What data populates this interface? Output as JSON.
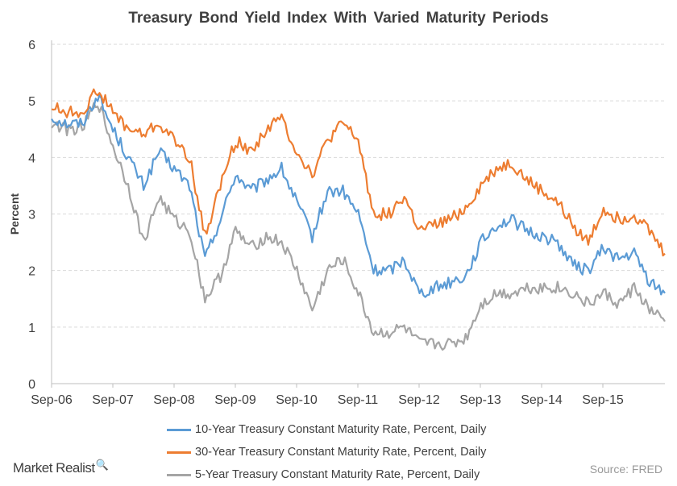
{
  "chart_data": {
    "type": "line",
    "title": "Treasury Bond Yield Index With Varied Maturity Periods",
    "ylabel": "Percent",
    "xlabel": "",
    "ylim": [
      0,
      6
    ],
    "yticks": [
      "0",
      "1",
      "2",
      "3",
      "4",
      "5",
      "6"
    ],
    "x_tick_labels": [
      "Sep-06",
      "Sep-07",
      "Sep-08",
      "Sep-09",
      "Sep-10",
      "Sep-11",
      "Sep-12",
      "Sep-13",
      "Sep-14",
      "Sep-15"
    ],
    "grid": true,
    "legend_position": "bottom",
    "x": [
      "Sep-06",
      "Dec-06",
      "Mar-07",
      "Jun-07",
      "Sep-07",
      "Dec-07",
      "Mar-08",
      "Jun-08",
      "Sep-08",
      "Nov-08",
      "Dec-08",
      "Mar-09",
      "Jun-09",
      "Sep-09",
      "Dec-09",
      "Mar-10",
      "Jun-10",
      "Sep-10",
      "Dec-10",
      "Mar-11",
      "Jun-11",
      "Sep-11",
      "Dec-11",
      "Mar-12",
      "Jun-12",
      "Sep-12",
      "Dec-12",
      "Mar-13",
      "Jun-13",
      "Sep-13",
      "Dec-13",
      "Mar-14",
      "Jun-14",
      "Sep-14",
      "Dec-14",
      "Mar-15",
      "Jun-15",
      "Sep-15",
      "Dec-15",
      "Mar-16",
      "Jun-16"
    ],
    "series": [
      {
        "name": "10-Year Treasury Constant Maturity Rate, Percent, Daily",
        "color": "#5b9bd5",
        "values": [
          4.7,
          4.6,
          4.6,
          5.1,
          4.5,
          4.0,
          3.5,
          4.1,
          3.8,
          3.5,
          2.2,
          2.9,
          3.7,
          3.4,
          3.6,
          3.8,
          3.2,
          2.6,
          3.4,
          3.4,
          3.0,
          2.0,
          2.0,
          2.2,
          1.6,
          1.7,
          1.8,
          1.9,
          2.5,
          2.8,
          2.9,
          2.7,
          2.6,
          2.5,
          2.1,
          2.0,
          2.4,
          2.2,
          2.3,
          1.8,
          1.6
        ]
      },
      {
        "name": "30-Year Treasury Constant Maturity Rate, Percent, Daily",
        "color": "#ed7d31",
        "values": [
          4.9,
          4.8,
          4.8,
          5.2,
          4.8,
          4.5,
          4.4,
          4.6,
          4.3,
          4.0,
          2.6,
          3.5,
          4.3,
          4.1,
          4.5,
          4.7,
          4.1,
          3.7,
          4.3,
          4.6,
          4.3,
          3.0,
          3.0,
          3.3,
          2.7,
          2.8,
          2.9,
          3.1,
          3.5,
          3.8,
          3.9,
          3.6,
          3.4,
          3.2,
          2.8,
          2.5,
          3.1,
          2.9,
          3.0,
          2.7,
          2.3
        ]
      },
      {
        "name": "5-Year Treasury Constant Maturity Rate, Percent, Daily",
        "color": "#a5a5a5",
        "values": [
          4.6,
          4.5,
          4.5,
          5.0,
          4.2,
          3.5,
          2.5,
          3.3,
          2.9,
          2.7,
          1.5,
          1.9,
          2.7,
          2.4,
          2.6,
          2.5,
          2.0,
          1.3,
          2.0,
          2.2,
          1.6,
          0.9,
          0.9,
          1.0,
          0.7,
          0.7,
          0.7,
          0.8,
          1.4,
          1.6,
          1.6,
          1.7,
          1.7,
          1.7,
          1.6,
          1.4,
          1.6,
          1.4,
          1.7,
          1.3,
          1.1
        ]
      }
    ],
    "source": "Source: FRED",
    "brand": "Market Realist"
  }
}
